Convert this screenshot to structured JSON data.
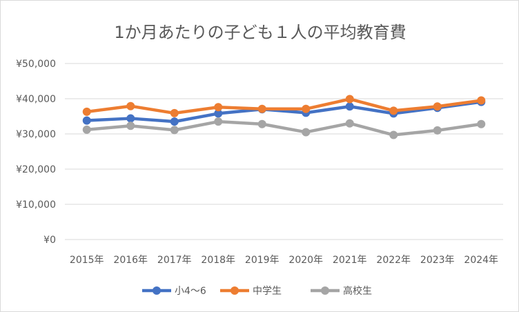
{
  "chart_data": {
    "type": "line",
    "title": "1か月あたりの子ども１人の平均教育費",
    "categories": [
      "2015年",
      "2016年",
      "2017年",
      "2018年",
      "2019年",
      "2020年",
      "2021年",
      "2022年",
      "2023年",
      "2024年"
    ],
    "yticks": [
      "¥0",
      "¥10,000",
      "¥20,000",
      "¥30,000",
      "¥40,000",
      "¥50,000"
    ],
    "ylim": [
      0,
      50000
    ],
    "grid": true,
    "legend": "bottom",
    "series": [
      {
        "name": "小4〜6",
        "color": "#4472c4",
        "values": [
          33800,
          34400,
          33500,
          35800,
          37000,
          36000,
          37800,
          35800,
          37400,
          39100
        ]
      },
      {
        "name": "中学生",
        "color": "#ed7d31",
        "values": [
          36300,
          37900,
          35900,
          37600,
          37100,
          37100,
          39900,
          36600,
          37800,
          39500
        ]
      },
      {
        "name": "高校生",
        "color": "#a5a5a5",
        "values": [
          31200,
          32300,
          31100,
          33500,
          32800,
          30500,
          33000,
          29700,
          31000,
          32800
        ]
      }
    ]
  }
}
